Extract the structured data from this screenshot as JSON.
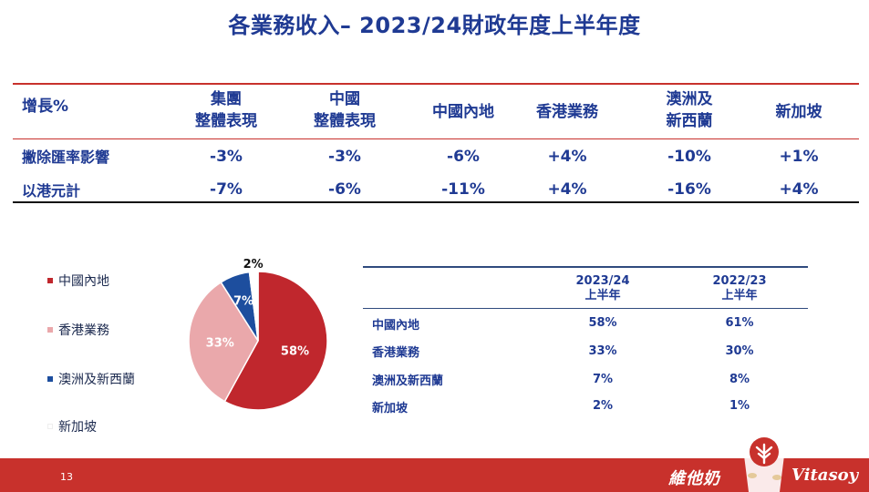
{
  "title": "各業務收入– 2023/24財政年度上半年度",
  "growth_table": {
    "header_label": "增長%",
    "columns": [
      {
        "line1": "集團",
        "line2": "整體表現"
      },
      {
        "line1": "中國",
        "line2": "整體表現"
      },
      {
        "line1": "中國內地",
        "line2": ""
      },
      {
        "line1": "香港業務",
        "line2": ""
      },
      {
        "line1": "澳洲及",
        "line2": "新西蘭"
      },
      {
        "line1": "新加坡",
        "line2": ""
      }
    ],
    "rows": [
      {
        "label": "撇除匯率影響",
        "values": [
          "-3%",
          "-3%",
          "-6%",
          "+4%",
          "-10%",
          "+1%"
        ]
      },
      {
        "label": "以港元計",
        "values": [
          "-7%",
          "-6%",
          "-11%",
          "+4%",
          "-16%",
          "+4%"
        ]
      }
    ]
  },
  "legend": [
    {
      "label": "中國內地",
      "color": "#c0272d"
    },
    {
      "label": "香港業務",
      "color": "#eaa8ab"
    },
    {
      "label": "澳洲及新西蘭",
      "color": "#1d4e9e"
    },
    {
      "label": "新加坡",
      "color": "#ffffff"
    }
  ],
  "chart_data": {
    "type": "pie",
    "slices": [
      {
        "label": "中國內地",
        "value": 58,
        "display": "58%",
        "color": "#c0272d"
      },
      {
        "label": "香港業務",
        "value": 33,
        "display": "33%",
        "color": "#eaa8ab"
      },
      {
        "label": "澳洲及新西蘭",
        "value": 7,
        "display": "7%",
        "color": "#1d4e9e"
      },
      {
        "label": "新加坡",
        "value": 2,
        "display": "2%",
        "color": "#ffffff"
      }
    ]
  },
  "share_table": {
    "headers": [
      {
        "line1": "2023/24",
        "line2": "上半年"
      },
      {
        "line1": "2022/23",
        "line2": "上半年"
      }
    ],
    "rows": [
      {
        "label": "中國內地",
        "values": [
          "58%",
          "61%"
        ]
      },
      {
        "label": "香港業務",
        "values": [
          "33%",
          "30%"
        ]
      },
      {
        "label": "澳洲及新西蘭",
        "values": [
          "7%",
          "8%"
        ]
      },
      {
        "label": "新加坡",
        "values": [
          "2%",
          "1%"
        ]
      }
    ]
  },
  "footer": {
    "page_number": "13",
    "logo_cn": "維他奶",
    "logo_en": "Vitasoy"
  }
}
